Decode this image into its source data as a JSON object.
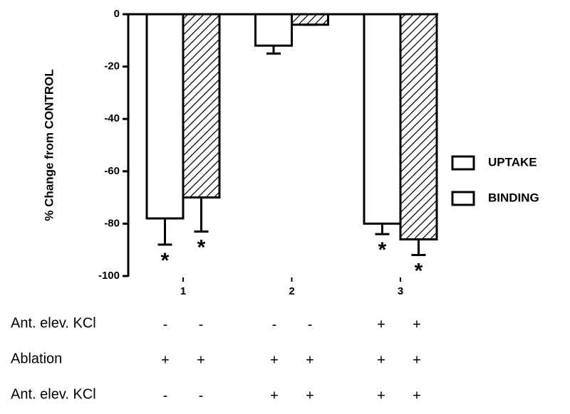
{
  "chart_data": {
    "type": "bar",
    "y_label": "% Change from CONTROL",
    "categories": [
      "1",
      "2",
      "3"
    ],
    "series": [
      {
        "name": "UPTAKE",
        "color": "#ffffff",
        "hatch": false,
        "values": [
          -78,
          -12,
          -80
        ],
        "errors": [
          10,
          3,
          4
        ],
        "significance": [
          "*",
          null,
          "*"
        ]
      },
      {
        "name": "BINDING",
        "color": "#ffffff",
        "hatch": true,
        "values": [
          -70,
          -4,
          -86
        ],
        "errors": [
          13,
          0,
          6
        ],
        "significance": [
          "*",
          null,
          "*"
        ]
      }
    ],
    "ylim": [
      0,
      -100
    ],
    "yticks": [
      0,
      -20,
      -40,
      -60,
      -80,
      -100
    ],
    "legend": "right",
    "conditions": [
      {
        "label": "Ant. elev. KCl",
        "signs": [
          "-",
          "-",
          "-",
          "-",
          "+",
          "+"
        ]
      },
      {
        "label": "Ablation",
        "signs": [
          "+",
          "+",
          "+",
          "+",
          "+",
          "+"
        ]
      },
      {
        "label": "Ant. elev. KCl",
        "signs": [
          "-",
          "-",
          "+",
          "+",
          "+",
          "+"
        ]
      }
    ]
  }
}
